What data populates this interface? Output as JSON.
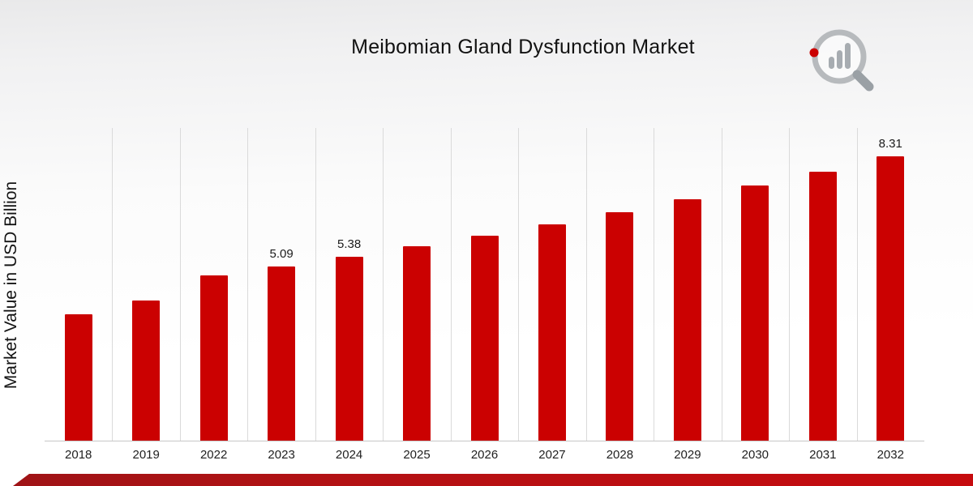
{
  "header": {
    "title": "Meibomian Gland Dysfunction Market"
  },
  "logo": {
    "name": "market-research-magnifier-logo"
  },
  "chart_data": {
    "type": "bar",
    "title": "Meibomian Gland Dysfunction Market",
    "xlabel": "",
    "ylabel": "Market Value in USD Billion",
    "categories": [
      "2018",
      "2019",
      "2022",
      "2023",
      "2024",
      "2025",
      "2026",
      "2027",
      "2028",
      "2029",
      "2030",
      "2031",
      "2032"
    ],
    "values": [
      3.69,
      4.1,
      4.83,
      5.09,
      5.38,
      5.68,
      6.0,
      6.33,
      6.69,
      7.06,
      7.46,
      7.87,
      8.31
    ],
    "data_labels": [
      null,
      null,
      null,
      "5.09",
      "5.38",
      null,
      null,
      null,
      null,
      null,
      null,
      null,
      "8.31"
    ],
    "ylim": [
      0,
      9.17
    ],
    "grid": "vertical-only",
    "legend": "none",
    "bar_color": "#cb0101",
    "gridline_color": "#dadada",
    "axis_line_color": "#c7c7c7"
  }
}
